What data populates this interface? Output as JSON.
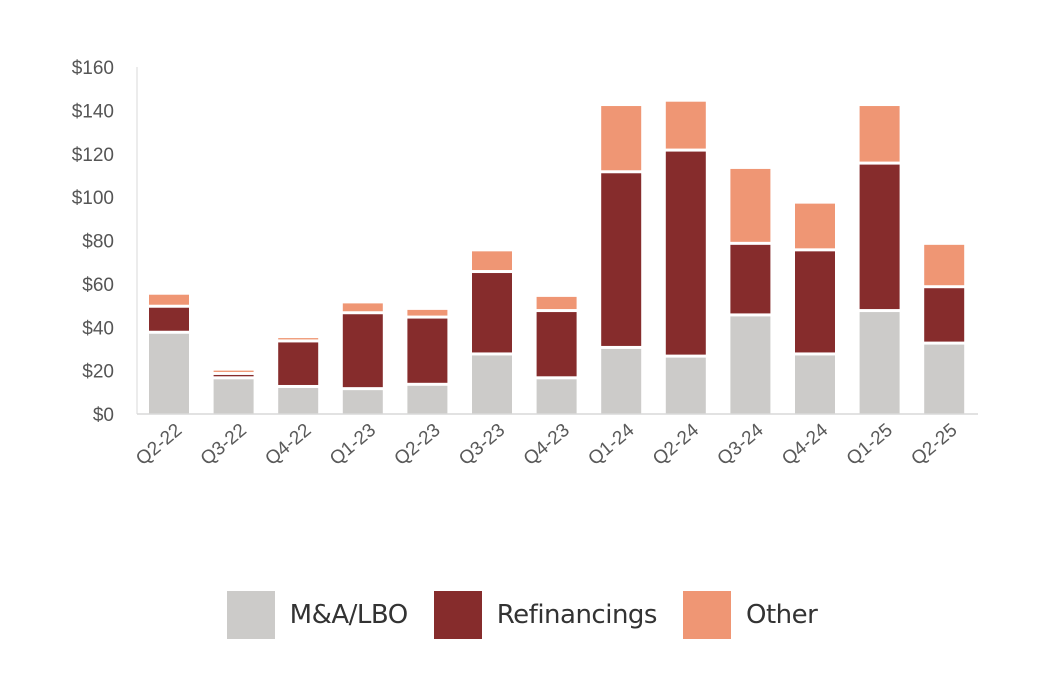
{
  "chart_data": {
    "type": "bar",
    "stacked": true,
    "title": "",
    "xlabel": "",
    "ylabel": "",
    "ylim": [
      0,
      160
    ],
    "yticks": [
      0,
      20,
      40,
      60,
      80,
      100,
      120,
      140,
      160
    ],
    "ytick_labels": [
      "$0",
      "$20",
      "$40",
      "$60",
      "$80",
      "$100",
      "$120",
      "$140",
      "$160"
    ],
    "grid": false,
    "legend_position": "bottom",
    "categories": [
      "Q2-22",
      "Q3-22",
      "Q4-22",
      "Q1-23",
      "Q2-23",
      "Q3-23",
      "Q4-23",
      "Q1-24",
      "Q2-24",
      "Q3-24",
      "Q4-24",
      "Q1-25",
      "Q2-25"
    ],
    "series": [
      {
        "name": "M&A/LBO",
        "color": "#cccbc9",
        "values": [
          37,
          16,
          12,
          11,
          13,
          27,
          16,
          30,
          26,
          45,
          27,
          47,
          32
        ]
      },
      {
        "name": "Refinancings",
        "color": "#862c2c",
        "values": [
          12,
          2,
          21,
          35,
          31,
          38,
          31,
          81,
          95,
          33,
          48,
          68,
          26
        ]
      },
      {
        "name": "Other",
        "color": "#ef9674",
        "values": [
          6,
          2,
          2,
          5,
          4,
          10,
          7,
          31,
          23,
          35,
          22,
          27,
          20
        ]
      }
    ]
  }
}
